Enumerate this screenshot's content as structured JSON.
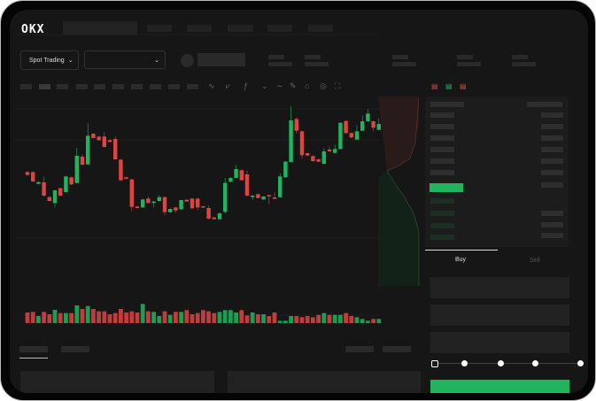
{
  "brand": {
    "logo": "OKX"
  },
  "market_selector": {
    "label": "Spot Trading",
    "pair_value": ""
  },
  "trade_form": {
    "tabs": [
      {
        "label": "Buy",
        "active": true
      },
      {
        "label": "Sell",
        "active": false
      }
    ],
    "slider_percent": 0
  },
  "colors": {
    "up": "#22b35e",
    "down": "#e04343",
    "accent": "#22b35e",
    "background": "#161616"
  },
  "icons": [
    "chevron-down-icon",
    "line-chart-icon",
    "pen-icon",
    "magnet-icon",
    "target-icon",
    "fullscreen-icon",
    "orderbook-both-icon",
    "orderbook-buy-icon",
    "orderbook-sell-icon"
  ],
  "chart_data": {
    "type": "candlestick",
    "title": "",
    "columns": [
      "open",
      "high",
      "low",
      "close"
    ],
    "candles": [
      [
        750,
        752,
        738,
        740
      ],
      [
        750,
        752,
        716,
        718
      ],
      [
        710,
        718,
        708,
        716
      ],
      [
        715,
        735,
        668,
        670
      ],
      [
        665,
        668,
        650,
        652
      ],
      [
        645,
        690,
        630,
        688
      ],
      [
        695,
        697,
        668,
        670
      ],
      [
        682,
        737,
        680,
        735
      ],
      [
        732,
        734,
        706,
        708
      ],
      [
        713,
        832,
        711,
        805
      ],
      [
        802,
        810,
        773,
        775
      ],
      [
        776,
        915,
        774,
        873
      ],
      [
        880,
        882,
        863,
        865
      ],
      [
        870,
        872,
        856,
        858
      ],
      [
        870,
        885,
        833,
        835
      ],
      [
        858,
        860,
        851,
        852
      ],
      [
        862,
        870,
        791,
        793
      ],
      [
        792,
        794,
        720,
        722
      ],
      [
        732,
        734,
        725,
        727
      ],
      [
        725,
        727,
        618,
        632
      ],
      [
        633,
        635,
        626,
        628
      ],
      [
        630,
        659,
        628,
        657
      ],
      [
        660,
        667,
        643,
        645
      ],
      [
        645,
        652,
        630,
        650
      ],
      [
        652,
        672,
        650,
        665
      ],
      [
        665,
        667,
        603,
        614
      ],
      [
        614,
        626,
        612,
        625
      ],
      [
        630,
        632,
        612,
        620
      ],
      [
        624,
        656,
        622,
        655
      ],
      [
        656,
        657,
        649,
        650
      ],
      [
        660,
        662,
        625,
        627
      ],
      [
        660,
        662,
        620,
        630
      ],
      [
        634,
        635,
        629,
        630
      ],
      [
        628,
        636,
        590,
        592
      ],
      [
        596,
        598,
        589,
        590
      ],
      [
        590,
        612,
        588,
        610
      ],
      [
        615,
        730,
        610,
        713
      ],
      [
        717,
        732,
        715,
        730
      ],
      [
        730,
        774,
        728,
        760
      ],
      [
        756,
        758,
        720,
        722
      ],
      [
        742,
        755,
        668,
        670
      ],
      [
        665,
        672,
        655,
        670
      ],
      [
        675,
        676,
        661,
        662
      ],
      [
        657,
        668,
        656,
        667
      ],
      [
        672,
        673,
        640,
        670
      ],
      [
        664,
        680,
        658,
        659
      ],
      [
        665,
        745,
        663,
        735
      ],
      [
        732,
        787,
        730,
        785
      ],
      [
        784,
        973,
        782,
        925
      ],
      [
        930,
        935,
        880,
        890
      ],
      [
        888,
        890,
        795,
        807
      ],
      [
        814,
        815,
        804,
        806
      ],
      [
        804,
        806,
        785,
        787
      ],
      [
        793,
        795,
        783,
        785
      ],
      [
        778,
        830,
        776,
        820
      ],
      [
        826,
        837,
        818,
        820
      ],
      [
        815,
        843,
        813,
        828
      ],
      [
        828,
        918,
        826,
        917
      ],
      [
        923,
        925,
        880,
        882
      ],
      [
        882,
        884,
        865,
        867
      ],
      [
        860,
        908,
        858,
        888
      ],
      [
        890,
        942,
        888,
        922
      ],
      [
        922,
        963,
        920,
        948
      ],
      [
        922,
        924,
        888,
        900
      ],
      [
        893,
        933,
        891,
        913
      ]
    ],
    "volume": [
      36,
      38,
      24,
      38,
      30,
      45,
      34,
      34,
      34,
      60,
      48,
      58,
      48,
      40,
      40,
      30,
      34,
      48,
      36,
      40,
      36,
      65,
      40,
      38,
      24,
      40,
      28,
      38,
      38,
      44,
      30,
      34,
      44,
      40,
      34,
      38,
      44,
      44,
      36,
      44,
      26,
      36,
      30,
      30,
      24,
      36,
      8,
      8,
      24,
      24,
      20,
      24,
      20,
      28,
      34,
      28,
      28,
      28,
      34,
      24,
      20,
      14,
      8,
      14,
      14
    ]
  }
}
